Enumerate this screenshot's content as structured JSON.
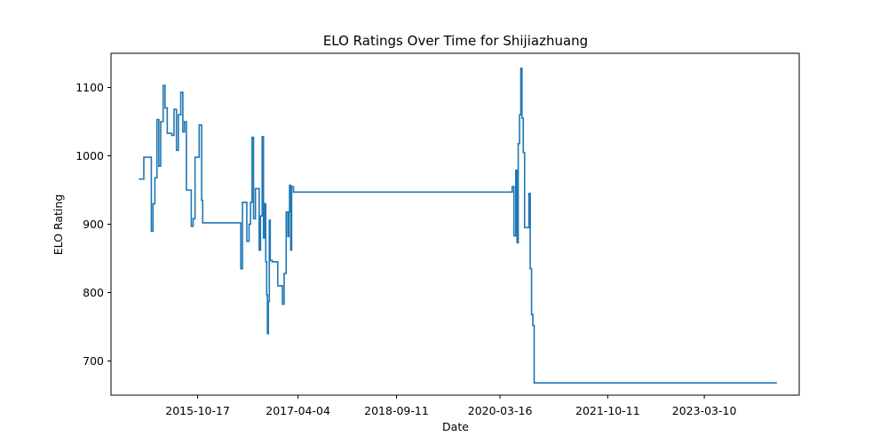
{
  "chart_data": {
    "type": "line",
    "title": "ELO Ratings Over Time for Shijiazhuang",
    "xlabel": "Date",
    "ylabel": "ELO Rating",
    "x_tick_labels": [
      "2015-10-17",
      "2017-04-04",
      "2018-09-11",
      "2020-03-16",
      "2021-10-11",
      "2023-03-10"
    ],
    "y_ticks": [
      700,
      800,
      900,
      1000,
      1100
    ],
    "xlim": [
      "2014-07-12",
      "2024-07-28"
    ],
    "ylim": [
      650,
      1150
    ],
    "grid": false,
    "series": [
      {
        "color": "#1f77b4",
        "step": true,
        "points": [
          [
            "2014-12-08",
            966
          ],
          [
            "2015-01-03",
            998
          ],
          [
            "2015-02-12",
            890
          ],
          [
            "2015-02-21",
            930
          ],
          [
            "2015-03-03",
            968
          ],
          [
            "2015-03-14",
            1053
          ],
          [
            "2015-03-24",
            985
          ],
          [
            "2015-04-03",
            1050
          ],
          [
            "2015-04-16",
            1103
          ],
          [
            "2015-04-26",
            1070
          ],
          [
            "2015-05-08",
            1033
          ],
          [
            "2015-06-01",
            1030
          ],
          [
            "2015-06-13",
            1068
          ],
          [
            "2015-06-26",
            1008
          ],
          [
            "2015-07-06",
            1060
          ],
          [
            "2015-07-19",
            1093
          ],
          [
            "2015-07-30",
            1035
          ],
          [
            "2015-08-08",
            1050
          ],
          [
            "2015-08-18",
            950
          ],
          [
            "2015-09-13",
            897
          ],
          [
            "2015-09-23",
            908
          ],
          [
            "2015-10-03",
            998
          ],
          [
            "2015-10-25",
            1045
          ],
          [
            "2015-11-07",
            935
          ],
          [
            "2015-11-13",
            902
          ],
          [
            "2016-06-03",
            835
          ],
          [
            "2016-06-12",
            932
          ],
          [
            "2016-07-05",
            875
          ],
          [
            "2016-07-17",
            900
          ],
          [
            "2016-07-25",
            932
          ],
          [
            "2016-08-02",
            1027
          ],
          [
            "2016-08-10",
            908
          ],
          [
            "2016-08-20",
            952
          ],
          [
            "2016-09-09",
            862
          ],
          [
            "2016-09-16",
            912
          ],
          [
            "2016-09-25",
            1028
          ],
          [
            "2016-10-02",
            880
          ],
          [
            "2016-10-07",
            930
          ],
          [
            "2016-10-14",
            845
          ],
          [
            "2016-10-19",
            797
          ],
          [
            "2016-10-23",
            740
          ],
          [
            "2016-10-28",
            787
          ],
          [
            "2016-11-02",
            906
          ],
          [
            "2016-11-07",
            847
          ],
          [
            "2016-11-17",
            845
          ],
          [
            "2016-12-02",
            845
          ],
          [
            "2016-12-17",
            810
          ],
          [
            "2017-01-11",
            783
          ],
          [
            "2017-01-20",
            828
          ],
          [
            "2017-01-31",
            918
          ],
          [
            "2017-02-09",
            882
          ],
          [
            "2017-02-14",
            918
          ],
          [
            "2017-02-18",
            957
          ],
          [
            "2017-02-24",
            862
          ],
          [
            "2017-03-01",
            955
          ],
          [
            "2017-03-11",
            947
          ],
          [
            "2020-05-10",
            947
          ],
          [
            "2020-05-20",
            955
          ],
          [
            "2020-05-29",
            883
          ],
          [
            "2020-06-08",
            979
          ],
          [
            "2020-06-15",
            873
          ],
          [
            "2020-06-21",
            1018
          ],
          [
            "2020-06-28",
            1060
          ],
          [
            "2020-07-05",
            1128
          ],
          [
            "2020-07-11",
            1055
          ],
          [
            "2020-07-18",
            1005
          ],
          [
            "2020-07-25",
            895
          ],
          [
            "2020-08-17",
            945
          ],
          [
            "2020-08-24",
            835
          ],
          [
            "2020-08-31",
            768
          ],
          [
            "2020-09-07",
            752
          ],
          [
            "2020-09-14",
            668
          ],
          [
            "2024-03-31",
            668
          ]
        ]
      }
    ]
  }
}
